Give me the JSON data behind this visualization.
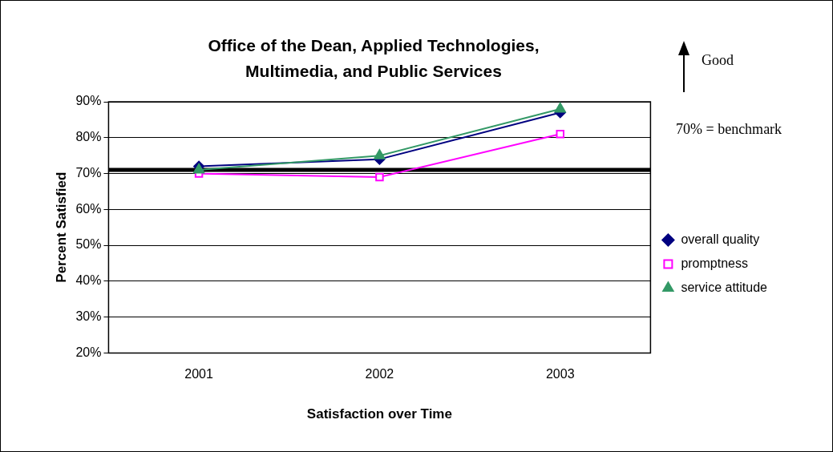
{
  "chart_data": {
    "type": "line",
    "title": "Office of the Dean, Applied Technologies, Multimedia, and Public Services",
    "xlabel": "Satisfaction over Time",
    "ylabel": "Percent Satisfied",
    "annotations": [
      "Good",
      "70% = benchmark"
    ],
    "categories": [
      "2001",
      "2002",
      "2003"
    ],
    "series": [
      {
        "name": "overall quality",
        "color": "#000080",
        "marker": "diamond",
        "values": [
          72,
          74,
          87
        ]
      },
      {
        "name": "promptness",
        "color": "#ff00ff",
        "marker": "square",
        "values": [
          70,
          69,
          81
        ]
      },
      {
        "name": "service attitude",
        "color": "#339966",
        "marker": "triangle",
        "values": [
          71,
          75,
          88
        ]
      }
    ],
    "ylim": [
      20,
      90
    ],
    "yticks": [
      {
        "value": 20,
        "label": "20%"
      },
      {
        "value": 30,
        "label": "30%"
      },
      {
        "value": 40,
        "label": "40%"
      },
      {
        "value": 50,
        "label": "50%"
      },
      {
        "value": 60,
        "label": "60%"
      },
      {
        "value": 70,
        "label": "70%"
      },
      {
        "value": 80,
        "label": "80%"
      },
      {
        "value": 90,
        "label": "90%"
      }
    ],
    "ref_lines": [
      {
        "axis": "y",
        "value": 71,
        "color": "#000000"
      }
    ],
    "grid": "y",
    "legend": "right",
    "line_style": "solid"
  }
}
